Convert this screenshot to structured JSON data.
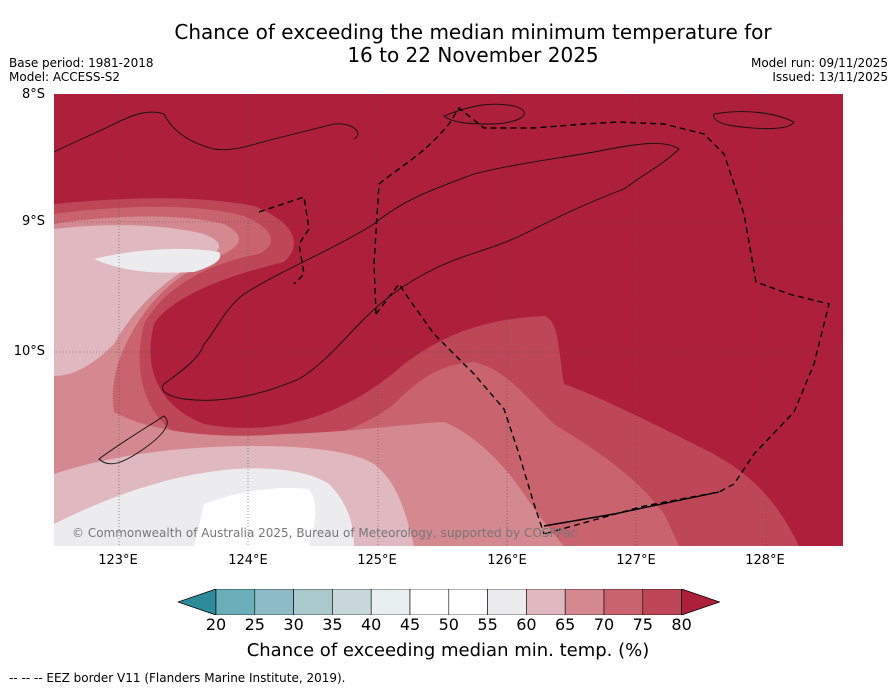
{
  "title": {
    "line1": "Chance of exceeding the median minimum temperature for",
    "line2": "16 to 22 November 2025"
  },
  "meta_left": {
    "base_period": "Base period: 1981-2018",
    "model": "Model: ACCESS-S2"
  },
  "meta_right": {
    "model_run": "Model run: 09/11/2025",
    "issued": "Issued: 13/11/2025"
  },
  "axes": {
    "lat_labels": [
      "8°S",
      "9°S",
      "10°S"
    ],
    "lon_labels": [
      "123°E",
      "124°E",
      "125°E",
      "126°E",
      "127°E",
      "128°E"
    ]
  },
  "attribution": "© Commonwealth of Australia 2025, Bureau of Meteorology, supported by COSPPac",
  "colorbar": {
    "ticks": [
      "20",
      "25",
      "30",
      "35",
      "40",
      "45",
      "50",
      "55",
      "60",
      "65",
      "70",
      "75",
      "80"
    ],
    "colors": [
      "#2e8b9a",
      "#6aaeba",
      "#8ebcc6",
      "#a9c9cc",
      "#c8d8da",
      "#e7eff1",
      "#ffffff",
      "#ffffff",
      "#ececee",
      "#e0b8bf",
      "#d48890",
      "#c9636e",
      "#bd4657",
      "#ad1f3a"
    ],
    "label": "Chance of exceeding median min. temp. (%)"
  },
  "footer": "--  --  -- EEZ border V11 (Flanders Marine Institute, 2019)."
}
